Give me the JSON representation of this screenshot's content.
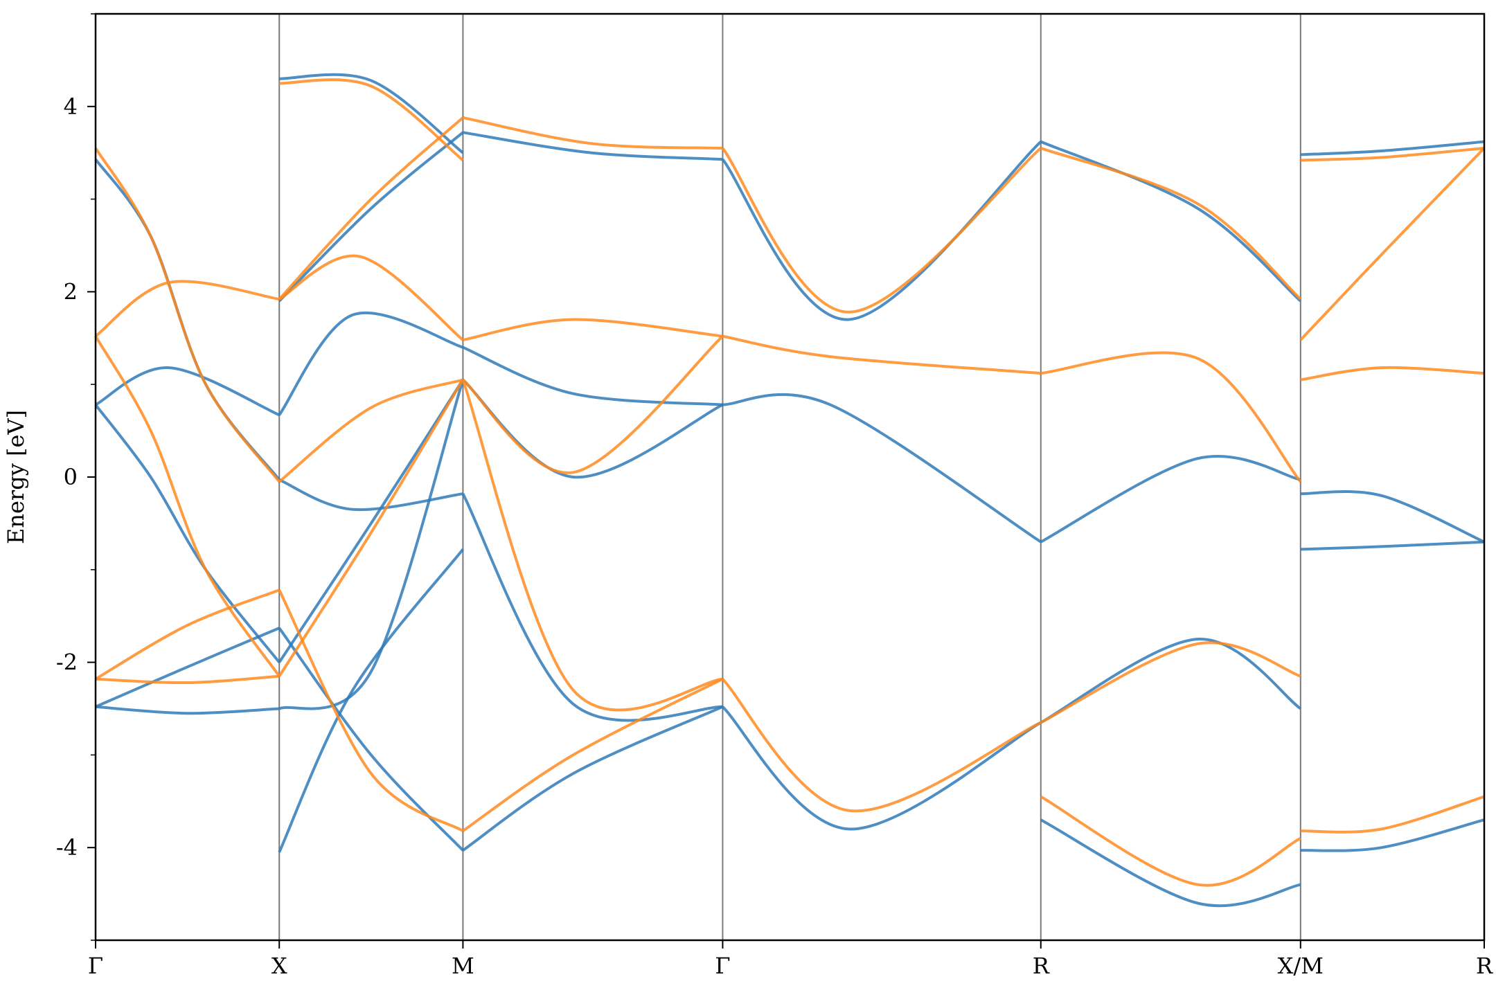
{
  "chart_data": {
    "type": "line",
    "title": "",
    "ylabel": "Energy [eV]",
    "xlabel": "",
    "ylim": [
      -5,
      5
    ],
    "yticks": [
      -4,
      -2,
      0,
      2,
      4
    ],
    "ytick_labels": [
      "-4",
      "-2",
      "0",
      "2",
      "4"
    ],
    "yminor_ticks": [
      -5,
      -3,
      -1,
      1,
      3,
      5
    ],
    "kpoints": [
      {
        "label": "Γ",
        "x": 0
      },
      {
        "label": "X",
        "x": 0.5
      },
      {
        "label": "M",
        "x": 1.0
      },
      {
        "label": "Γ",
        "x": 1.707
      },
      {
        "label": "R",
        "x": 2.573
      },
      {
        "label": "X/M",
        "x": 3.28
      },
      {
        "label": "R",
        "x": 3.78
      }
    ],
    "xlim": [
      0,
      3.78
    ],
    "grid": false,
    "colors": {
      "blue": "#2f7ab8",
      "orange": "#ff8a1e"
    },
    "series": [
      {
        "color": "blue",
        "x": [
          0,
          0.2,
          0.5
        ],
        "y": [
          0.78,
          1.18,
          0.67
        ]
      },
      {
        "color": "blue",
        "x": [
          0,
          0.25,
          0.5
        ],
        "y": [
          -2.48,
          -2.55,
          -2.5
        ]
      },
      {
        "color": "blue",
        "x": [
          0,
          0.25,
          0.5
        ],
        "y": [
          -2.48,
          -2.05,
          -1.63
        ]
      },
      {
        "color": "blue",
        "x": [
          0,
          0.15,
          0.3,
          0.5
        ],
        "y": [
          3.43,
          2.6,
          1.0,
          -0.03
        ]
      },
      {
        "color": "blue",
        "x": [
          0,
          0.15,
          0.3,
          0.5
        ],
        "y": [
          0.78,
          0.0,
          -1.0,
          -2.0
        ]
      },
      {
        "color": "blue",
        "x": [
          0.5,
          0.7,
          1.0
        ],
        "y": [
          0.67,
          1.75,
          1.4
        ]
      },
      {
        "color": "blue",
        "x": [
          0.5,
          0.7,
          1.0
        ],
        "y": [
          -0.03,
          -0.35,
          -0.18
        ]
      },
      {
        "color": "blue",
        "x": [
          0.5,
          0.75,
          1.0
        ],
        "y": [
          -1.63,
          -3.0,
          -4.03
        ]
      },
      {
        "color": "blue",
        "x": [
          0.5,
          0.75,
          1.0
        ],
        "y": [
          -2.0,
          -0.5,
          1.05
        ]
      },
      {
        "color": "blue",
        "x": [
          0.5,
          0.75,
          1.0
        ],
        "y": [
          -2.5,
          -2.1,
          1.05
        ]
      },
      {
        "color": "blue",
        "x": [
          0.5,
          0.7,
          1.0
        ],
        "y": [
          -4.05,
          -2.3,
          -0.78
        ]
      },
      {
        "color": "blue",
        "x": [
          0.5,
          0.75,
          1.0
        ],
        "y": [
          4.3,
          4.28,
          3.5
        ]
      },
      {
        "color": "blue",
        "x": [
          0.5,
          0.75,
          1.0
        ],
        "y": [
          1.9,
          2.9,
          3.72
        ]
      },
      {
        "color": "blue",
        "x": [
          1.0,
          1.35,
          1.707
        ],
        "y": [
          3.72,
          3.5,
          3.43
        ]
      },
      {
        "color": "blue",
        "x": [
          1.0,
          1.3,
          1.707
        ],
        "y": [
          1.4,
          0.9,
          0.78
        ]
      },
      {
        "color": "blue",
        "x": [
          1.0,
          1.3,
          1.707
        ],
        "y": [
          1.05,
          0.0,
          0.78
        ]
      },
      {
        "color": "blue",
        "x": [
          1.0,
          1.3,
          1.707
        ],
        "y": [
          -0.18,
          -2.45,
          -2.48
        ]
      },
      {
        "color": "blue",
        "x": [
          1.0,
          1.3,
          1.707
        ],
        "y": [
          -4.03,
          -3.2,
          -2.48
        ]
      },
      {
        "color": "blue",
        "x": [
          1.707,
          2.0,
          2.573
        ],
        "y": [
          0.78,
          0.78,
          -0.7
        ]
      },
      {
        "color": "blue",
        "x": [
          1.707,
          2.05,
          2.573
        ],
        "y": [
          3.43,
          1.7,
          3.62
        ]
      },
      {
        "color": "blue",
        "x": [
          1.707,
          2.05,
          2.573
        ],
        "y": [
          -2.48,
          -3.8,
          -2.65
        ]
      },
      {
        "color": "blue",
        "x": [
          2.573,
          3.0,
          3.28
        ],
        "y": [
          -0.7,
          0.2,
          -0.03
        ]
      },
      {
        "color": "blue",
        "x": [
          2.573,
          3.0,
          3.28
        ],
        "y": [
          3.62,
          2.9,
          1.9
        ]
      },
      {
        "color": "blue",
        "x": [
          2.573,
          3.0,
          3.28
        ],
        "y": [
          -2.65,
          -1.75,
          -2.5
        ]
      },
      {
        "color": "blue",
        "x": [
          2.573,
          3.0,
          3.28
        ],
        "y": [
          -3.7,
          -4.6,
          -4.4
        ]
      },
      {
        "color": "blue",
        "x": [
          3.28,
          3.5,
          3.78
        ],
        "y": [
          3.48,
          3.52,
          3.62
        ]
      },
      {
        "color": "blue",
        "x": [
          3.28,
          3.5,
          3.78
        ],
        "y": [
          -0.18,
          -0.2,
          -0.7
        ]
      },
      {
        "color": "blue",
        "x": [
          3.28,
          3.5,
          3.78
        ],
        "y": [
          -0.78,
          -0.75,
          -0.7
        ]
      },
      {
        "color": "blue",
        "x": [
          3.28,
          3.5,
          3.78
        ],
        "y": [
          -4.03,
          -4.0,
          -3.7
        ]
      },
      {
        "color": "orange",
        "x": [
          0,
          0.2,
          0.5
        ],
        "y": [
          1.52,
          2.1,
          1.92
        ]
      },
      {
        "color": "orange",
        "x": [
          0,
          0.25,
          0.5
        ],
        "y": [
          -2.18,
          -2.22,
          -2.15
        ]
      },
      {
        "color": "orange",
        "x": [
          0,
          0.25,
          0.5
        ],
        "y": [
          -2.18,
          -1.6,
          -1.22
        ]
      },
      {
        "color": "orange",
        "x": [
          0,
          0.15,
          0.3,
          0.5
        ],
        "y": [
          3.55,
          2.6,
          1.0,
          -0.05
        ]
      },
      {
        "color": "orange",
        "x": [
          0,
          0.15,
          0.3,
          0.5
        ],
        "y": [
          1.52,
          0.5,
          -1.0,
          -2.15
        ]
      },
      {
        "color": "orange",
        "x": [
          0.5,
          0.72,
          1.0
        ],
        "y": [
          1.92,
          2.38,
          1.48
        ]
      },
      {
        "color": "orange",
        "x": [
          0.5,
          0.75,
          1.0
        ],
        "y": [
          -0.05,
          0.75,
          1.05
        ]
      },
      {
        "color": "orange",
        "x": [
          0.5,
          0.75,
          1.0
        ],
        "y": [
          -1.22,
          -3.2,
          -3.82
        ]
      },
      {
        "color": "orange",
        "x": [
          0.5,
          0.75,
          1.0
        ],
        "y": [
          -2.15,
          -0.6,
          1.05
        ]
      },
      {
        "color": "orange",
        "x": [
          0.5,
          0.75,
          1.0
        ],
        "y": [
          4.25,
          4.22,
          3.42
        ]
      },
      {
        "color": "orange",
        "x": [
          0.5,
          0.75,
          1.0
        ],
        "y": [
          1.92,
          3.0,
          3.88
        ]
      },
      {
        "color": "orange",
        "x": [
          1.0,
          1.35,
          1.707
        ],
        "y": [
          3.88,
          3.6,
          3.55
        ]
      },
      {
        "color": "orange",
        "x": [
          1.0,
          1.3,
          1.707
        ],
        "y": [
          1.48,
          1.7,
          1.52
        ]
      },
      {
        "color": "orange",
        "x": [
          1.0,
          1.3,
          1.707
        ],
        "y": [
          1.05,
          0.05,
          1.52
        ]
      },
      {
        "color": "orange",
        "x": [
          1.0,
          1.3,
          1.707
        ],
        "y": [
          1.05,
          -2.3,
          -2.18
        ]
      },
      {
        "color": "orange",
        "x": [
          1.0,
          1.3,
          1.707
        ],
        "y": [
          -3.82,
          -3.0,
          -2.18
        ]
      },
      {
        "color": "orange",
        "x": [
          1.707,
          2.0,
          2.573
        ],
        "y": [
          1.52,
          1.3,
          1.12
        ]
      },
      {
        "color": "orange",
        "x": [
          1.707,
          2.05,
          2.573
        ],
        "y": [
          3.55,
          1.78,
          3.55
        ]
      },
      {
        "color": "orange",
        "x": [
          1.707,
          2.05,
          2.573
        ],
        "y": [
          -2.18,
          -3.6,
          -2.65
        ]
      },
      {
        "color": "orange",
        "x": [
          2.573,
          3.0,
          3.28
        ],
        "y": [
          1.12,
          1.28,
          -0.05
        ]
      },
      {
        "color": "orange",
        "x": [
          2.573,
          3.0,
          3.28
        ],
        "y": [
          3.55,
          2.95,
          1.92
        ]
      },
      {
        "color": "orange",
        "x": [
          2.573,
          3.0,
          3.28
        ],
        "y": [
          -2.65,
          -1.8,
          -2.15
        ]
      },
      {
        "color": "orange",
        "x": [
          2.573,
          3.0,
          3.28
        ],
        "y": [
          -3.45,
          -4.4,
          -3.9
        ]
      },
      {
        "color": "orange",
        "x": [
          3.28,
          3.5,
          3.78
        ],
        "y": [
          3.42,
          3.45,
          3.55
        ]
      },
      {
        "color": "orange",
        "x": [
          3.28,
          3.5,
          3.78
        ],
        "y": [
          1.05,
          1.18,
          1.12
        ]
      },
      {
        "color": "orange",
        "x": [
          3.28,
          3.5,
          3.78
        ],
        "y": [
          1.48,
          2.4,
          3.55
        ]
      },
      {
        "color": "orange",
        "x": [
          3.28,
          3.5,
          3.78
        ],
        "y": [
          -3.82,
          -3.8,
          -3.45
        ]
      }
    ]
  }
}
